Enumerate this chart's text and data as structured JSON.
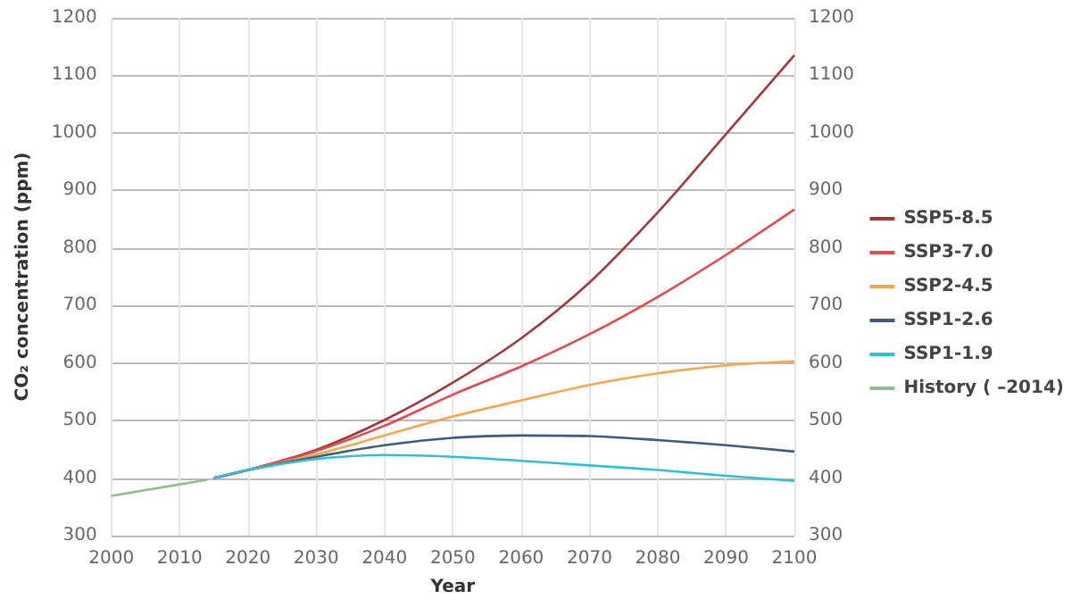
{
  "chart_data": {
    "type": "line",
    "xlabel": "Year",
    "ylabel": "CO₂ concentration (ppm)",
    "xlim": [
      2000,
      2100
    ],
    "xticks": [
      2000,
      2010,
      2020,
      2030,
      2040,
      2050,
      2060,
      2070,
      2080,
      2090,
      2100
    ],
    "ylim": [
      300,
      1200
    ],
    "yticks": [
      300,
      400,
      500,
      600,
      700,
      800,
      900,
      1000,
      1100,
      1200
    ],
    "y2lim": [
      300,
      1200
    ],
    "y2ticks": [
      300,
      400,
      500,
      600,
      700,
      800,
      900,
      1000,
      1100,
      1200
    ],
    "grid": true,
    "legend": "right",
    "marker": "none",
    "line_style": "solid",
    "series": [
      {
        "name": "SSP5-8.5",
        "color": "#9e3a3e",
        "x": [
          2015,
          2020,
          2030,
          2040,
          2050,
          2060,
          2070,
          2080,
          2090,
          2100
        ],
        "values": [
          400,
          414,
          449,
          501,
          566,
          643,
          740,
          862,
          998,
          1135
        ]
      },
      {
        "name": "SSP3-7.0",
        "color": "#e8474e",
        "x": [
          2015,
          2020,
          2030,
          2040,
          2050,
          2060,
          2070,
          2080,
          2090,
          2100
        ],
        "values": [
          400,
          414,
          447,
          491,
          545,
          594,
          650,
          715,
          788,
          867
        ]
      },
      {
        "name": "SSP2-4.5",
        "color": "#f7a64a",
        "x": [
          2015,
          2020,
          2030,
          2040,
          2050,
          2060,
          2070,
          2080,
          2090,
          2100
        ],
        "values": [
          400,
          414,
          441,
          474,
          507,
          535,
          562,
          582,
          596,
          603
        ]
      },
      {
        "name": "SSP1-2.6",
        "color": "#3d5a80",
        "x": [
          2015,
          2020,
          2030,
          2040,
          2050,
          2060,
          2070,
          2080,
          2090,
          2100
        ],
        "values": [
          400,
          414,
          437,
          457,
          470,
          474,
          473,
          466,
          457,
          446
        ]
      },
      {
        "name": "SSP1-1.9",
        "color": "#2fbfdc",
        "x": [
          2015,
          2020,
          2030,
          2040,
          2050,
          2060,
          2070,
          2080,
          2090,
          2100
        ],
        "values": [
          400,
          414,
          433,
          440,
          437,
          430,
          422,
          414,
          404,
          395
        ]
      },
      {
        "name": "History ( –2014)",
        "color": "#8fbf8f",
        "x": [
          2000,
          2005,
          2010,
          2014
        ],
        "values": [
          369,
          379,
          389,
          397
        ]
      }
    ]
  }
}
